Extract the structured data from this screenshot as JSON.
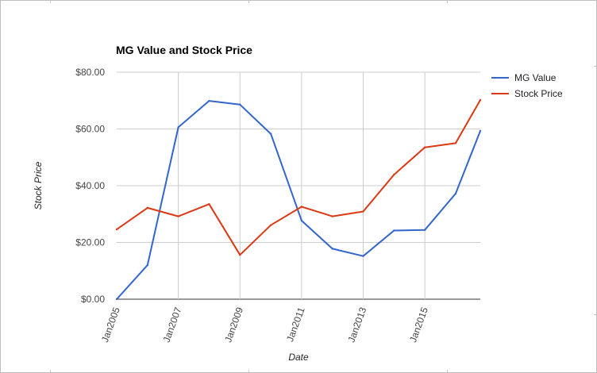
{
  "chart_data": {
    "type": "line",
    "title": "MG Value and Stock Price",
    "xlabel": "Date",
    "ylabel": "Stock Price",
    "x": [
      2005,
      2006,
      2007,
      2008,
      2009,
      2010,
      2011,
      2012,
      2013,
      2014,
      2015,
      2016,
      2016.8
    ],
    "x_ticks": [
      2005,
      2007,
      2009,
      2011,
      2013,
      2015
    ],
    "x_tick_labels": [
      "Jan2005",
      "Jan2007",
      "Jan2009",
      "Jan2011",
      "Jan2013",
      "Jan2015"
    ],
    "y_ticks": [
      0,
      20,
      40,
      60,
      80
    ],
    "y_tick_labels": [
      "$0.00",
      "$20.00",
      "$40.00",
      "$60.00",
      "$80.00"
    ],
    "xlim": [
      2005,
      2016.8
    ],
    "ylim": [
      0,
      80
    ],
    "grid": true,
    "legend_position": "right",
    "series": [
      {
        "name": "MG Value",
        "color": "#3366cc",
        "values": [
          0,
          12,
          60.6,
          69.9,
          68.6,
          58.3,
          27.7,
          17.8,
          15.2,
          24.2,
          24.4,
          37.2,
          59.3
        ]
      },
      {
        "name": "Stock Price",
        "color": "#dc3912",
        "values": [
          24.6,
          32.2,
          29.2,
          33.5,
          15.6,
          26.1,
          32.6,
          29.2,
          30.9,
          43.9,
          53.5,
          55,
          70.2
        ]
      }
    ]
  }
}
